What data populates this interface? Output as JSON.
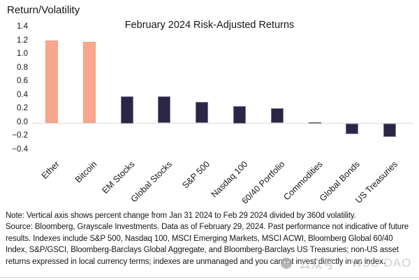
{
  "chart": {
    "y_axis_title": "Return/Volatility",
    "title": "February 2024 Risk-Adjusted Returns"
  },
  "chart_data": {
    "type": "bar",
    "title": "February 2024 Risk-Adjusted Returns",
    "ylabel": "Return/Volatility",
    "xlabel": "",
    "categories": [
      "Ether",
      "Bitcoin",
      "EM Stocks",
      "Global Stocks",
      "S&P 500",
      "Nasdaq 100",
      "60/40 Portfolio",
      "Commodities",
      "Global Bonds",
      "US Treasuries"
    ],
    "values": [
      1.22,
      1.19,
      0.4,
      0.39,
      0.31,
      0.25,
      0.22,
      0.02,
      -0.16,
      -0.2
    ],
    "bar_colors": [
      "#F9A78C",
      "#F9A78C",
      "#2D2545",
      "#2D2545",
      "#2D2545",
      "#2D2545",
      "#2D2545",
      "#2D2545",
      "#2D2545",
      "#2D2545"
    ],
    "accent_colors": {
      "crypto": "#F9A78C",
      "traditional": "#2D2545",
      "zero_line": "#D9D9D9"
    },
    "ylim": [
      -0.4,
      1.4
    ],
    "yticks": [
      {
        "label": "1.4",
        "value": 1.4
      },
      {
        "label": "1.2",
        "value": 1.2
      },
      {
        "label": "1.0",
        "value": 1.0
      },
      {
        "label": "0.8",
        "value": 0.8
      },
      {
        "label": "0.6",
        "value": 0.6
      },
      {
        "label": "0.4",
        "value": 0.4
      },
      {
        "label": "0.2",
        "value": 0.2
      },
      {
        "label": "0.0",
        "value": 0.0
      },
      {
        "label": "−0.2",
        "value": -0.2
      },
      {
        "label": "−0.4",
        "value": -0.4
      }
    ],
    "grid": false,
    "legend": null,
    "x_label_rotation_deg": 45
  },
  "footnote": {
    "note_line": "Note: Vertical axis shows percent change from Jan 31 2024 to Feb 29 2024 divided by 360d volatility.",
    "source_text": "Source: Bloomberg, Grayscale Investments. Data as of February 29, 2024. Past performance not indicative of future results. Indexes include S&P 500, Nasdaq 100, MSCI Emerging Markets, MSCI ACWI, Bloomberg Global 60/40 Index, S&P/GSCI, Bloomberg-Barclays Global Aggregate, and Bloomberg-Barclays US Treasuries; non-US asset returns expressed in local currency terms; indexes are unmanaged and you cannot invest directly in an index."
  },
  "watermark": {
    "icon": "wechat-logo-icon",
    "text_cn": "公众号",
    "text_latin": "W3C DAO"
  }
}
